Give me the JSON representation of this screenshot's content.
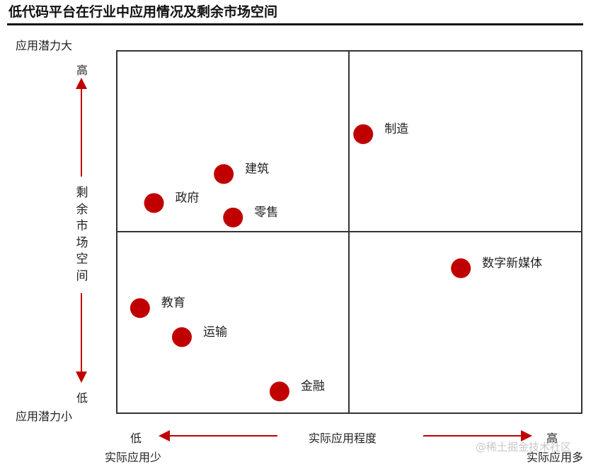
{
  "title": "低代码平台在行业中应用情况及剩余市场空间",
  "y_axis": {
    "top_label": "应用潜力大",
    "bottom_label": "应用潜力小",
    "high": "高",
    "low": "低",
    "title": "剩余市场空间"
  },
  "x_axis": {
    "low": "低",
    "high": "高",
    "title": "实际应用程度",
    "left_label": "实际应用少",
    "right_label": "实际应用多"
  },
  "watermark": "@稀土掘金技术社区",
  "colors": {
    "point": "#c00000",
    "arrow": "#c00000",
    "grid": "#333333"
  },
  "chart_data": {
    "type": "scatter",
    "title": "低代码平台在行业中应用情况及剩余市场空间",
    "xlabel": "实际应用程度",
    "ylabel": "剩余市场空间",
    "xlim": [
      0,
      100
    ],
    "ylim": [
      0,
      100
    ],
    "grid": "2x2 quadrants",
    "points": [
      {
        "label": "制造",
        "x": 53,
        "y": 77
      },
      {
        "label": "建筑",
        "x": 23,
        "y": 66
      },
      {
        "label": "政府",
        "x": 8,
        "y": 58
      },
      {
        "label": "零售",
        "x": 25,
        "y": 54
      },
      {
        "label": "数字新媒体",
        "x": 74,
        "y": 40
      },
      {
        "label": "教育",
        "x": 5,
        "y": 29
      },
      {
        "label": "运输",
        "x": 14,
        "y": 21
      },
      {
        "label": "金融",
        "x": 35,
        "y": 6
      }
    ]
  }
}
